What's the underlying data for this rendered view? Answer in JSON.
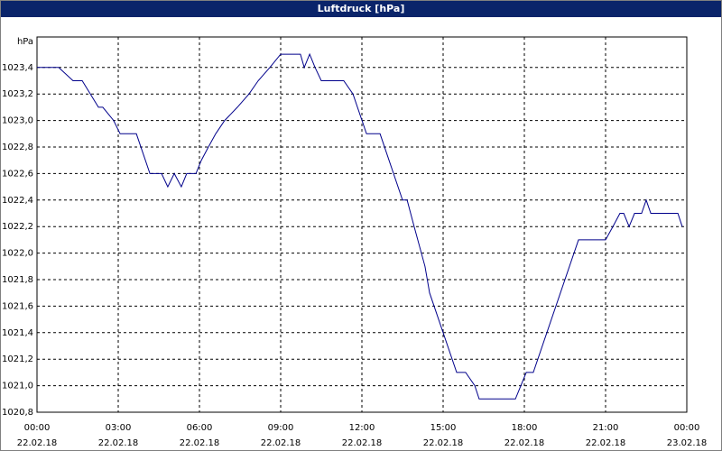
{
  "chart_data": {
    "type": "line",
    "title": "Luftdruck [hPa]",
    "y_unit": "hPa",
    "xlim": [
      0,
      24
    ],
    "ylim": [
      1020.8,
      1023.63
    ],
    "grid": true,
    "xticks": [
      {
        "value": 0,
        "label": "00:00",
        "date": "22.02.18"
      },
      {
        "value": 3,
        "label": "03:00",
        "date": "22.02.18"
      },
      {
        "value": 6,
        "label": "06:00",
        "date": "22.02.18"
      },
      {
        "value": 9,
        "label": "09:00",
        "date": "22.02.18"
      },
      {
        "value": 12,
        "label": "12:00",
        "date": "22.02.18"
      },
      {
        "value": 15,
        "label": "15:00",
        "date": "22.02.18"
      },
      {
        "value": 18,
        "label": "18:00",
        "date": "22.02.18"
      },
      {
        "value": 21,
        "label": "21:00",
        "date": "22.02.18"
      },
      {
        "value": 24,
        "label": "00:00",
        "date": "23.02.18"
      }
    ],
    "yticks": [
      {
        "value": 1020.8,
        "label": "1020,8"
      },
      {
        "value": 1021.0,
        "label": "1021,0"
      },
      {
        "value": 1021.2,
        "label": "1021,2"
      },
      {
        "value": 1021.4,
        "label": "1021,4"
      },
      {
        "value": 1021.6,
        "label": "1021,6"
      },
      {
        "value": 1021.8,
        "label": "1021,8"
      },
      {
        "value": 1022.0,
        "label": "1022,0"
      },
      {
        "value": 1022.2,
        "label": "1022,2"
      },
      {
        "value": 1022.4,
        "label": "1022,4"
      },
      {
        "value": 1022.6,
        "label": "1022,6"
      },
      {
        "value": 1022.8,
        "label": "1022,8"
      },
      {
        "value": 1023.0,
        "label": "1023,0"
      },
      {
        "value": 1023.2,
        "label": "1023,2"
      },
      {
        "value": 1023.4,
        "label": "1023,4"
      }
    ],
    "x": [
      0,
      0.8,
      1.33,
      1.67,
      2.27,
      2.43,
      2.83,
      3.07,
      3.67,
      4.17,
      4.6,
      4.83,
      5.07,
      5.33,
      5.53,
      5.87,
      6.07,
      6.33,
      6.6,
      6.93,
      7.4,
      7.83,
      8.17,
      8.6,
      9.0,
      9.73,
      9.87,
      10.07,
      10.27,
      10.5,
      11.33,
      11.67,
      12.17,
      12.67,
      13.5,
      13.67,
      13.93,
      14.33,
      14.5,
      15.5,
      15.83,
      16.17,
      16.33,
      17.67,
      18.07,
      18.33,
      20.0,
      21.0,
      21.27,
      21.53,
      21.67,
      21.87,
      22.07,
      22.33,
      22.5,
      22.67,
      23.67,
      23.83
    ],
    "series": [
      {
        "name": "Luftdruck",
        "color": "#00008b",
        "values": [
          1023.4,
          1023.4,
          1023.3,
          1023.3,
          1023.1,
          1023.1,
          1023.0,
          1022.9,
          1022.9,
          1022.6,
          1022.6,
          1022.5,
          1022.6,
          1022.5,
          1022.6,
          1022.6,
          1022.7,
          1022.8,
          1022.9,
          1023.0,
          1023.1,
          1023.2,
          1023.3,
          1023.4,
          1023.5,
          1023.5,
          1023.4,
          1023.5,
          1023.4,
          1023.3,
          1023.3,
          1023.2,
          1022.9,
          1022.9,
          1022.4,
          1022.4,
          1022.2,
          1021.9,
          1021.7,
          1021.1,
          1021.1,
          1021.0,
          1020.9,
          1020.9,
          1021.1,
          1021.1,
          1022.1,
          1022.1,
          1022.2,
          1022.3,
          1022.3,
          1022.2,
          1022.3,
          1022.3,
          1022.4,
          1022.3,
          1022.3,
          1022.2
        ]
      }
    ]
  }
}
